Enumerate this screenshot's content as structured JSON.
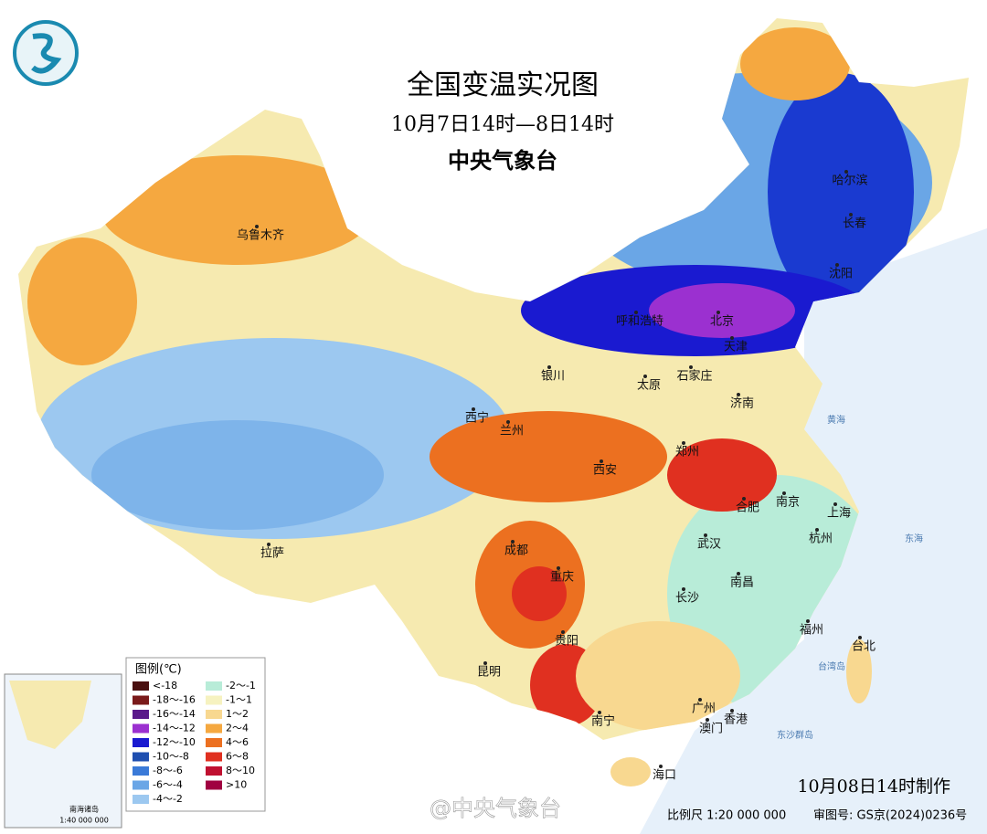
{
  "header": {
    "title": "全国变温实况图",
    "subtitle": "10月7日14时—8日14时",
    "agency": "中央气象台"
  },
  "cities": [
    "乌鲁木齐",
    "哈尔滨",
    "长春",
    "沈阳",
    "呼和浩特",
    "北京",
    "天津",
    "银川",
    "太原",
    "石家庄",
    "济南",
    "西宁",
    "兰州",
    "西安",
    "郑州",
    "合肥",
    "南京",
    "上海",
    "杭州",
    "拉萨",
    "成都",
    "重庆",
    "武汉",
    "南昌",
    "长沙",
    "福州",
    "台北",
    "贵阳",
    "昆明",
    "南宁",
    "广州",
    "香港",
    "澳门",
    "海口"
  ],
  "seas": [
    "黄海",
    "东海",
    "东沙群岛",
    "台湾岛"
  ],
  "legend": {
    "title": "图例(℃)",
    "items": [
      {
        "label": "<-18",
        "color": "#4a1010"
      },
      {
        "label": "-18～-16",
        "color": "#7a1a1a"
      },
      {
        "label": "-16～-14",
        "color": "#5a1a8a"
      },
      {
        "label": "-14～-12",
        "color": "#9b30d0"
      },
      {
        "label": "-12～-10",
        "color": "#1a1ad0"
      },
      {
        "label": "-10～-8",
        "color": "#1f4fb0"
      },
      {
        "label": "-8～-6",
        "color": "#3a7ad8"
      },
      {
        "label": "-6～-4",
        "color": "#6aa6e6"
      },
      {
        "label": "-4～-2",
        "color": "#9cc8f0"
      },
      {
        "label": "-2～-1",
        "color": "#b8ecd8"
      },
      {
        "label": "-1～1",
        "color": "#f6f2c0"
      },
      {
        "label": "1～2",
        "color": "#f8d890"
      },
      {
        "label": "2～4",
        "color": "#f5a840"
      },
      {
        "label": "4～6",
        "color": "#ec7020"
      },
      {
        "label": "6～8",
        "color": "#e03020"
      },
      {
        "label": "8～10",
        "color": "#c01030"
      },
      {
        "label": ">10",
        "color": "#a00040"
      }
    ]
  },
  "inset": {
    "title": "南海诸岛",
    "scale": "1:40 000 000"
  },
  "footer": {
    "made": "10月08日14时制作",
    "scale": "比例尺 1:20 000 000",
    "approval": "审图号: GS京(2024)0236号",
    "watermark": "@中央气象台"
  }
}
